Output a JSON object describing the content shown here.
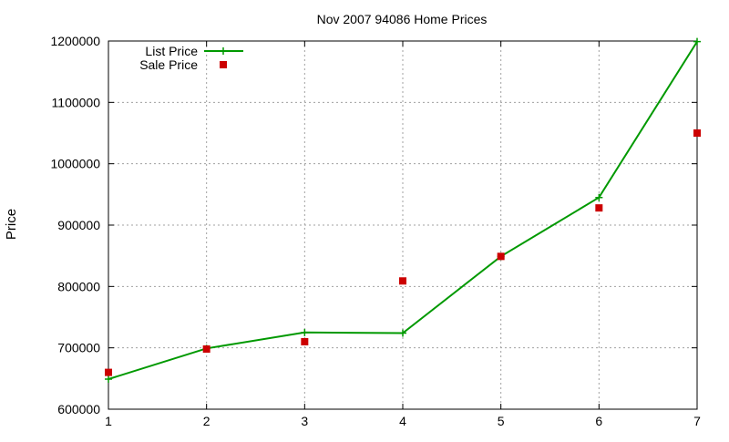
{
  "chart_data": {
    "type": "line",
    "title": "Nov 2007 94086 Home Prices",
    "xlabel": "",
    "ylabel": "Price",
    "x": [
      1,
      2,
      3,
      4,
      5,
      6,
      7
    ],
    "xlim": [
      1,
      7
    ],
    "ylim": [
      600000,
      1200000
    ],
    "xticks": [
      "1",
      "2",
      "3",
      "4",
      "5",
      "6",
      "7"
    ],
    "yticks": [
      "600000",
      "700000",
      "800000",
      "900000",
      "1000000",
      "1100000",
      "1200000"
    ],
    "grid": true,
    "legend_position": "top-left",
    "series": [
      {
        "name": "List Price",
        "kind": "line+points",
        "color": "#009900",
        "values": [
          649000,
          699000,
          725000,
          724000,
          849000,
          945000,
          1199000
        ]
      },
      {
        "name": "Sale Price",
        "kind": "points",
        "color": "#cc0000",
        "values": [
          660000,
          698000,
          710000,
          809000,
          849000,
          928000,
          1050000
        ]
      }
    ]
  }
}
